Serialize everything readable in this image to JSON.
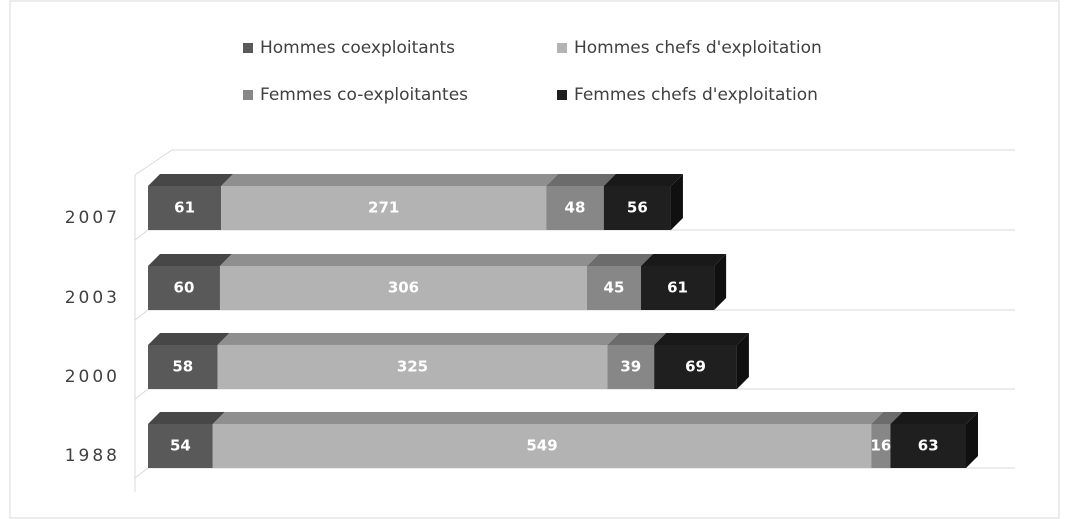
{
  "chart_data": {
    "type": "stacked-bar-3d",
    "categories": [
      "2007",
      "2003",
      "2000",
      "1988"
    ],
    "series": [
      {
        "name": "Hommes coexploitants",
        "color": "#595959",
        "values": [
          61,
          60,
          58,
          54
        ]
      },
      {
        "name": "Hommes chefs d'exploitation",
        "color": "#b3b3b3",
        "values": [
          271,
          306,
          325,
          549
        ]
      },
      {
        "name": "Femmes co-exploitantes",
        "color": "#878787",
        "values": [
          48,
          45,
          39,
          16
        ]
      },
      {
        "name": "Femmes chefs d'exploitation",
        "color": "#1f1f1f",
        "values": [
          56,
          61,
          69,
          63
        ]
      }
    ],
    "legend": "top"
  }
}
